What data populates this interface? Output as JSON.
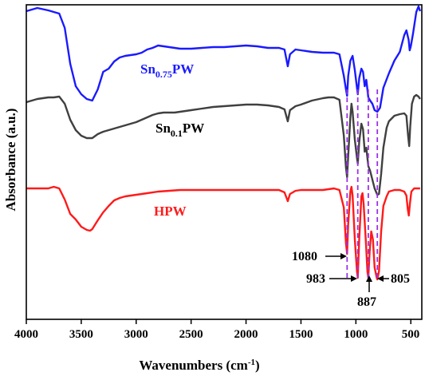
{
  "chart_data": {
    "type": "line",
    "title": "",
    "xlabel": "Wavenumbers (cm",
    "xlabel_sup": "-1",
    "xlabel_end": ")",
    "ylabel": "Absorbance (a.u.)",
    "xlim": [
      4000,
      400
    ],
    "x_reversed": true,
    "x_ticks": [
      "4000",
      "3500",
      "3000",
      "2500",
      "2000",
      "1500",
      "1000",
      "500"
    ],
    "y_tick_labels_shown": false,
    "grid": false,
    "series": [
      {
        "name_main": "Sn",
        "name_sub": "0.75",
        "name_end": "PW",
        "color": "#1a1aff",
        "points": [
          [
            4000,
            14
          ],
          [
            3900,
            10
          ],
          [
            3800,
            13
          ],
          [
            3700,
            17
          ],
          [
            3650,
            35
          ],
          [
            3600,
            80
          ],
          [
            3550,
            108
          ],
          [
            3500,
            118
          ],
          [
            3450,
            124
          ],
          [
            3400,
            126
          ],
          [
            3350,
            112
          ],
          [
            3300,
            90
          ],
          [
            3250,
            86
          ],
          [
            3200,
            77
          ],
          [
            3150,
            72
          ],
          [
            3100,
            70
          ],
          [
            3050,
            69
          ],
          [
            3000,
            68
          ],
          [
            2950,
            66
          ],
          [
            2900,
            62
          ],
          [
            2850,
            60
          ],
          [
            2800,
            57
          ],
          [
            2750,
            58
          ],
          [
            2700,
            59
          ],
          [
            2650,
            60
          ],
          [
            2600,
            61
          ],
          [
            2500,
            61
          ],
          [
            2400,
            60
          ],
          [
            2300,
            59
          ],
          [
            2200,
            59
          ],
          [
            2100,
            58
          ],
          [
            2000,
            57
          ],
          [
            1900,
            58
          ],
          [
            1800,
            60
          ],
          [
            1700,
            60
          ],
          [
            1650,
            62
          ],
          [
            1620,
            83
          ],
          [
            1600,
            68
          ],
          [
            1550,
            62
          ],
          [
            1500,
            63
          ],
          [
            1400,
            65
          ],
          [
            1300,
            66
          ],
          [
            1200,
            66
          ],
          [
            1150,
            68
          ],
          [
            1110,
            95
          ],
          [
            1090,
            112
          ],
          [
            1080,
            120
          ],
          [
            1070,
            95
          ],
          [
            1050,
            76
          ],
          [
            1030,
            70
          ],
          [
            1010,
            88
          ],
          [
            990,
            110
          ],
          [
            983,
            118
          ],
          [
            970,
            98
          ],
          [
            950,
            86
          ],
          [
            935,
            90
          ],
          [
            920,
            108
          ],
          [
            905,
            100
          ],
          [
            887,
            122
          ],
          [
            870,
            126
          ],
          [
            850,
            130
          ],
          [
            830,
            138
          ],
          [
            805,
            140
          ],
          [
            780,
            135
          ],
          [
            750,
            110
          ],
          [
            700,
            92
          ],
          [
            650,
            76
          ],
          [
            600,
            65
          ],
          [
            560,
            44
          ],
          [
            540,
            38
          ],
          [
            520,
            50
          ],
          [
            510,
            63
          ],
          [
            500,
            58
          ],
          [
            480,
            42
          ],
          [
            450,
            15
          ],
          [
            430,
            8
          ],
          [
            415,
            14
          ]
        ]
      },
      {
        "name_main": "Sn",
        "name_sub": "0.1",
        "name_end": "PW",
        "color": "#404040",
        "points": [
          [
            4000,
            128
          ],
          [
            3900,
            124
          ],
          [
            3800,
            122
          ],
          [
            3750,
            122
          ],
          [
            3700,
            121
          ],
          [
            3650,
            130
          ],
          [
            3600,
            150
          ],
          [
            3550,
            163
          ],
          [
            3500,
            170
          ],
          [
            3450,
            173
          ],
          [
            3400,
            173
          ],
          [
            3350,
            168
          ],
          [
            3300,
            165
          ],
          [
            3250,
            163
          ],
          [
            3200,
            161
          ],
          [
            3150,
            159
          ],
          [
            3100,
            157
          ],
          [
            3050,
            155
          ],
          [
            3000,
            153
          ],
          [
            2950,
            150
          ],
          [
            2900,
            147
          ],
          [
            2850,
            144
          ],
          [
            2800,
            142
          ],
          [
            2750,
            141
          ],
          [
            2700,
            141
          ],
          [
            2650,
            141
          ],
          [
            2600,
            140
          ],
          [
            2500,
            138
          ],
          [
            2400,
            136
          ],
          [
            2300,
            134
          ],
          [
            2200,
            133
          ],
          [
            2100,
            132
          ],
          [
            2000,
            131
          ],
          [
            1900,
            131
          ],
          [
            1800,
            132
          ],
          [
            1700,
            134
          ],
          [
            1650,
            137
          ],
          [
            1620,
            152
          ],
          [
            1600,
            138
          ],
          [
            1550,
            133
          ],
          [
            1500,
            131
          ],
          [
            1400,
            126
          ],
          [
            1300,
            123
          ],
          [
            1250,
            122
          ],
          [
            1200,
            122
          ],
          [
            1150,
            125
          ],
          [
            1110,
            170
          ],
          [
            1090,
            210
          ],
          [
            1080,
            222
          ],
          [
            1070,
            195
          ],
          [
            1050,
            147
          ],
          [
            1040,
            130
          ],
          [
            1030,
            140
          ],
          [
            1010,
            175
          ],
          [
            990,
            198
          ],
          [
            983,
            205
          ],
          [
            970,
            178
          ],
          [
            950,
            155
          ],
          [
            935,
            162
          ],
          [
            920,
            190
          ],
          [
            905,
            185
          ],
          [
            887,
            208
          ],
          [
            870,
            214
          ],
          [
            850,
            225
          ],
          [
            830,
            236
          ],
          [
            805,
            244
          ],
          [
            790,
            243
          ],
          [
            770,
            218
          ],
          [
            750,
            185
          ],
          [
            720,
            160
          ],
          [
            700,
            152
          ],
          [
            650,
            145
          ],
          [
            600,
            143
          ],
          [
            560,
            142
          ],
          [
            540,
            145
          ],
          [
            525,
            170
          ],
          [
            515,
            183
          ],
          [
            505,
            158
          ],
          [
            490,
            130
          ],
          [
            470,
            121
          ],
          [
            450,
            119
          ],
          [
            430,
            121
          ],
          [
            415,
            124
          ]
        ]
      },
      {
        "name_main": "HPW",
        "name_sub": "",
        "name_end": "",
        "color": "#ff1a1a",
        "points": [
          [
            4000,
            236
          ],
          [
            3900,
            236
          ],
          [
            3800,
            236
          ],
          [
            3750,
            234
          ],
          [
            3700,
            236
          ],
          [
            3650,
            250
          ],
          [
            3600,
            268
          ],
          [
            3550,
            275
          ],
          [
            3500,
            284
          ],
          [
            3450,
            288
          ],
          [
            3420,
            289
          ],
          [
            3400,
            287
          ],
          [
            3350,
            276
          ],
          [
            3300,
            266
          ],
          [
            3250,
            258
          ],
          [
            3200,
            251
          ],
          [
            3150,
            248
          ],
          [
            3100,
            246
          ],
          [
            3050,
            245
          ],
          [
            3000,
            244
          ],
          [
            2900,
            242
          ],
          [
            2800,
            240
          ],
          [
            2700,
            239
          ],
          [
            2600,
            238
          ],
          [
            2500,
            238
          ],
          [
            2400,
            238
          ],
          [
            2300,
            238
          ],
          [
            2200,
            238
          ],
          [
            2100,
            238
          ],
          [
            2000,
            238
          ],
          [
            1900,
            238
          ],
          [
            1800,
            238
          ],
          [
            1700,
            238
          ],
          [
            1650,
            241
          ],
          [
            1620,
            252
          ],
          [
            1600,
            243
          ],
          [
            1550,
            239
          ],
          [
            1500,
            238
          ],
          [
            1400,
            238
          ],
          [
            1300,
            238
          ],
          [
            1200,
            236
          ],
          [
            1150,
            238
          ],
          [
            1110,
            260
          ],
          [
            1090,
            305
          ],
          [
            1080,
            318
          ],
          [
            1070,
            280
          ],
          [
            1050,
            240
          ],
          [
            1040,
            234
          ],
          [
            1030,
            245
          ],
          [
            1010,
            300
          ],
          [
            990,
            340
          ],
          [
            983,
            348
          ],
          [
            970,
            300
          ],
          [
            950,
            246
          ],
          [
            940,
            242
          ],
          [
            930,
            255
          ],
          [
            910,
            300
          ],
          [
            895,
            340
          ],
          [
            887,
            348
          ],
          [
            875,
            315
          ],
          [
            860,
            290
          ],
          [
            845,
            300
          ],
          [
            830,
            335
          ],
          [
            810,
            348
          ],
          [
            805,
            350
          ],
          [
            790,
            340
          ],
          [
            770,
            290
          ],
          [
            750,
            258
          ],
          [
            720,
            246
          ],
          [
            700,
            240
          ],
          [
            650,
            238
          ],
          [
            600,
            238
          ],
          [
            560,
            240
          ],
          [
            540,
            245
          ],
          [
            528,
            262
          ],
          [
            518,
            270
          ],
          [
            508,
            255
          ],
          [
            495,
            240
          ],
          [
            470,
            236
          ],
          [
            440,
            236
          ],
          [
            415,
            236
          ]
        ]
      }
    ],
    "peak_labels": [
      "1080",
      "983",
      "887",
      "805"
    ],
    "peak_positions": [
      1080,
      983,
      887,
      805
    ],
    "guide_line_color": "#9a33e6"
  }
}
